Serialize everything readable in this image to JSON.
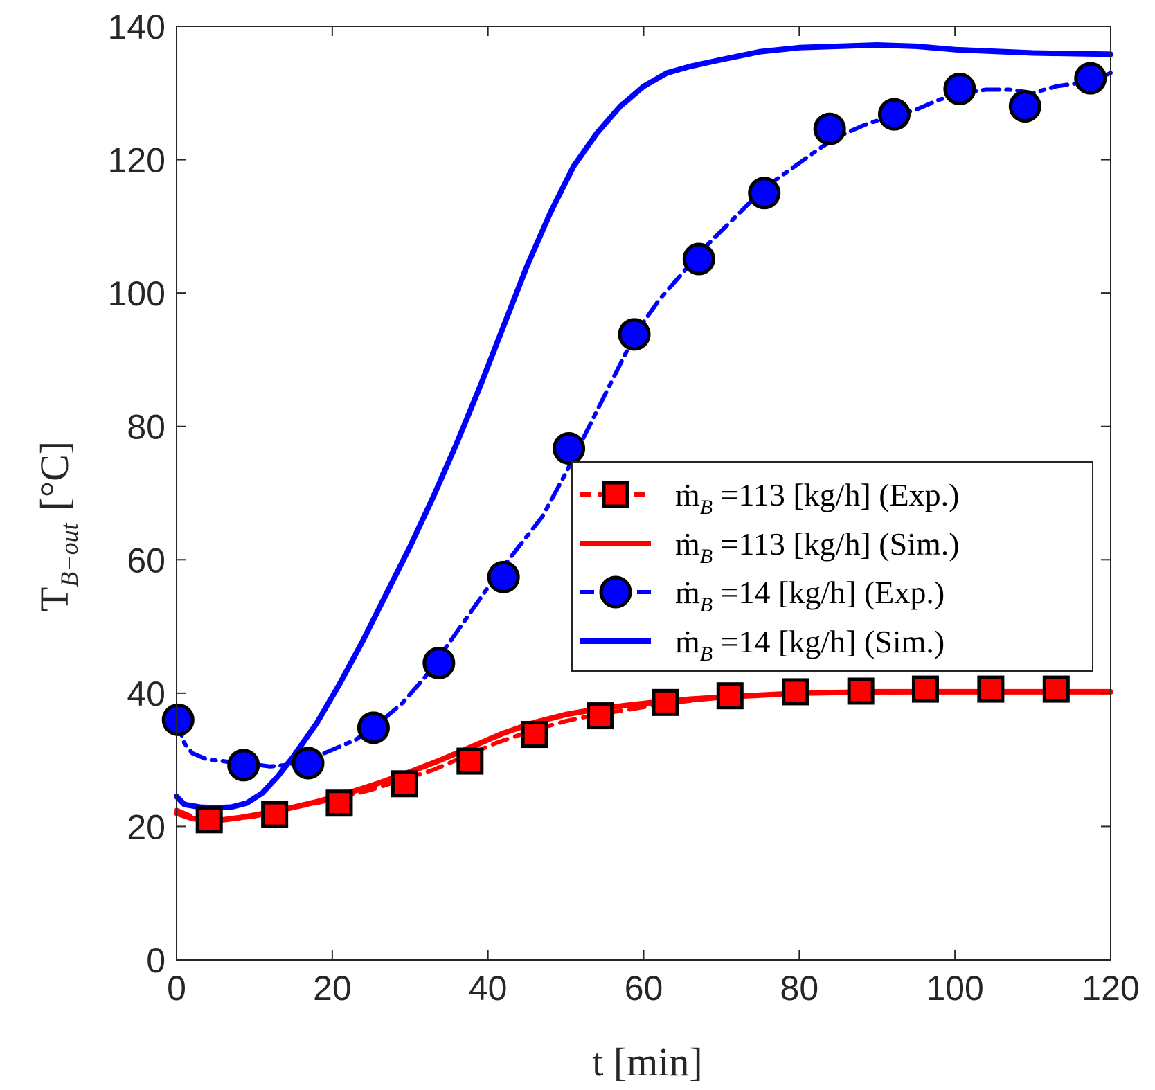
{
  "chart_data": {
    "type": "line",
    "title": "",
    "xlabel": "t [min]",
    "ylabel": "T_B-out [°C]",
    "ylabel_main": "T",
    "ylabel_sub": "B−out",
    "ylabel_unit": "[°C]",
    "xlim": [
      0,
      120
    ],
    "ylim": [
      0,
      140
    ],
    "xticks": [
      "0",
      "20",
      "40",
      "60",
      "80",
      "100",
      "120"
    ],
    "yticks": [
      "0",
      "20",
      "40",
      "60",
      "80",
      "100",
      "120",
      "140"
    ],
    "grid": false,
    "legend_position": "center-right",
    "colors": {
      "red": "#ff0000",
      "blue": "#0000ff",
      "axis": "#262626"
    },
    "series": [
      {
        "name": "113 exp",
        "label": "ṁ_B =113 [kg/h] (Exp.)",
        "label_main": "ṁ",
        "label_sub": "B",
        "label_rest": " =113 [kg/h] (Exp.)",
        "style": "dashed",
        "marker": "square",
        "color": "#ff0000",
        "x": [
          0,
          2,
          4,
          6,
          8,
          10,
          12,
          15,
          18,
          21,
          25,
          29,
          33,
          37,
          41,
          46,
          50,
          54,
          58,
          62,
          67,
          71,
          75,
          79,
          83,
          87,
          92,
          96,
          100,
          104,
          108,
          112,
          116,
          120
        ],
        "y": [
          22.5,
          21.5,
          21.0,
          21.0,
          21.2,
          21.5,
          22.0,
          22.8,
          23.5,
          24.3,
          25.5,
          27.0,
          28.5,
          30.5,
          32.5,
          34.5,
          35.8,
          36.8,
          37.5,
          38.3,
          39.0,
          39.4,
          39.7,
          40.0,
          40.0,
          40.1,
          40.1,
          40.2,
          40.2,
          40.2,
          40.2,
          40.2,
          40.2,
          40.2
        ],
        "marker_x": [
          4.2,
          12.6,
          20.9,
          29.3,
          37.7,
          46.0,
          54.4,
          62.8,
          71.1,
          79.5,
          87.9,
          96.2,
          104.6,
          113.0
        ],
        "marker_y": [
          21.0,
          21.8,
          23.5,
          26.4,
          29.8,
          33.8,
          36.6,
          38.6,
          39.6,
          40.2,
          40.3,
          40.6,
          40.6,
          40.6
        ]
      },
      {
        "name": "113 sim",
        "label": "ṁ_B =113 [kg/h] (Sim.)",
        "label_main": "ṁ",
        "label_sub": "B",
        "label_rest": " =113 [kg/h] (Sim.)",
        "style": "solid",
        "marker": "none",
        "color": "#ff0000",
        "x": [
          0,
          2,
          4,
          6,
          8,
          10,
          14,
          18,
          22,
          26,
          30,
          34,
          38,
          42,
          46,
          50,
          54,
          58,
          62,
          66,
          70,
          75,
          80,
          90,
          100,
          110,
          120
        ],
        "y": [
          22.0,
          21.2,
          20.9,
          21.0,
          21.3,
          21.7,
          22.6,
          23.7,
          25.0,
          26.5,
          28.2,
          30.0,
          32.0,
          34.0,
          35.6,
          36.8,
          37.6,
          38.2,
          38.7,
          39.1,
          39.4,
          39.7,
          40.0,
          40.2,
          40.2,
          40.2,
          40.2
        ]
      },
      {
        "name": "14 exp",
        "label": "ṁ_B =14 [kg/h] (Exp.)",
        "label_main": "ṁ",
        "label_sub": "B",
        "label_rest": " =14 [kg/h] (Exp.)",
        "style": "dashdot",
        "marker": "circle",
        "color": "#0000ff",
        "x": [
          0,
          1,
          2,
          4,
          6,
          8,
          10,
          12,
          14,
          17,
          20,
          23,
          26,
          29,
          32,
          35,
          38,
          41,
          44,
          47,
          50,
          53,
          56,
          59,
          62,
          65,
          68,
          71,
          74,
          77,
          80,
          83,
          86,
          89,
          92,
          95,
          98,
          101,
          104,
          107,
          110,
          113,
          116,
          118,
          120
        ],
        "y": [
          36.0,
          32.5,
          31.0,
          30.0,
          29.8,
          29.5,
          29.3,
          29.0,
          29.2,
          30.0,
          31.5,
          33.0,
          35.5,
          38.5,
          42.5,
          47.5,
          52.5,
          57.5,
          62.0,
          66.5,
          73.0,
          80.0,
          87.0,
          94.0,
          99.0,
          103.0,
          107.0,
          110.5,
          114.0,
          117.0,
          119.5,
          122.0,
          124.0,
          125.5,
          126.5,
          127.5,
          129.0,
          130.0,
          130.5,
          130.5,
          130.0,
          131.0,
          131.5,
          132.0,
          133.0
        ],
        "marker_x": [
          0.2,
          8.6,
          16.9,
          25.3,
          33.7,
          42.0,
          50.4,
          58.8,
          67.1,
          75.5,
          83.9,
          92.2,
          100.6,
          109.0,
          117.4
        ],
        "marker_y": [
          36.0,
          29.2,
          29.5,
          34.8,
          44.5,
          57.4,
          76.7,
          93.8,
          105.1,
          115.0,
          124.6,
          126.8,
          130.6,
          128.0,
          132.2
        ]
      },
      {
        "name": "14 sim",
        "label": "ṁ_B =14 [kg/h] (Sim.)",
        "label_main": "ṁ",
        "label_sub": "B",
        "label_rest": " =14 [kg/h] (Sim.)",
        "style": "solid",
        "marker": "none",
        "color": "#0000ff",
        "x": [
          0,
          1,
          3,
          5,
          7,
          9,
          11,
          13,
          15,
          18,
          21,
          24,
          27,
          30,
          33,
          36,
          39,
          42,
          45,
          48,
          51,
          54,
          57,
          60,
          63,
          66,
          70,
          75,
          80,
          85,
          90,
          95,
          100,
          110,
          120
        ],
        "y": [
          24.5,
          23.3,
          22.9,
          22.8,
          22.9,
          23.5,
          25.0,
          27.5,
          30.5,
          35.5,
          41.5,
          48.0,
          55.0,
          62.0,
          69.5,
          77.5,
          86.0,
          95.0,
          104.0,
          112.0,
          119.0,
          124.0,
          128.0,
          131.0,
          133.0,
          134.0,
          135.0,
          136.2,
          136.8,
          137.0,
          137.2,
          137.0,
          136.5,
          136.0,
          135.8
        ]
      }
    ]
  }
}
